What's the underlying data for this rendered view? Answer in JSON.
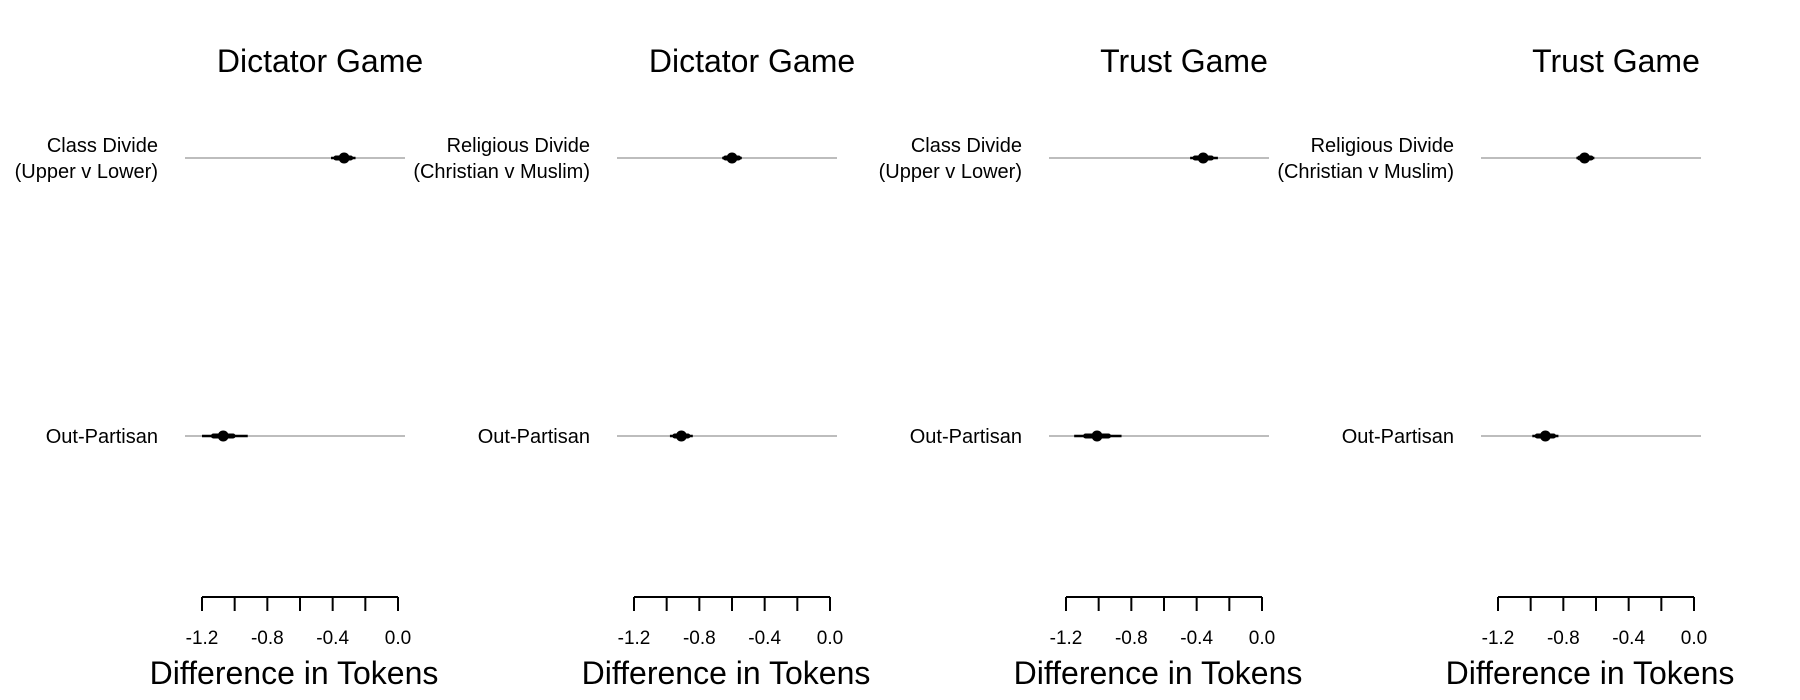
{
  "chart_data": [
    {
      "type": "coefficient_plot",
      "title": "Dictator Game",
      "xlabel": "Difference in Tokens",
      "xlim": [
        -1.2,
        0.0
      ],
      "xticks": [
        -1.2,
        -1.0,
        -0.8,
        -0.6,
        -0.4,
        -0.2,
        0.0
      ],
      "xtick_labels": [
        "-1.2",
        "-0.8",
        "-0.4",
        "0.0"
      ],
      "rows": [
        {
          "label_lines": [
            "Class Divide",
            "(Upper v Lower)"
          ],
          "estimate": -0.33,
          "ci_low": -0.41,
          "ci_high": -0.26,
          "ci_inner_low": -0.38,
          "ci_inner_high": -0.29
        },
        {
          "label_lines": [
            "Out-Partisan"
          ],
          "estimate": -1.07,
          "ci_low": -1.2,
          "ci_high": -0.92,
          "ci_inner_low": -1.13,
          "ci_inner_high": -1.01
        }
      ]
    },
    {
      "type": "coefficient_plot",
      "title": "Dictator Game",
      "xlabel": "Difference in Tokens",
      "xlim": [
        -1.2,
        0.0
      ],
      "xticks": [
        -1.2,
        -1.0,
        -0.8,
        -0.6,
        -0.4,
        -0.2,
        0.0
      ],
      "xtick_labels": [
        "-1.2",
        "-0.8",
        "-0.4",
        "0.0"
      ],
      "rows": [
        {
          "label_lines": [
            "Religious Divide",
            "(Christian v Muslim)"
          ],
          "estimate": -0.6,
          "ci_low": -0.66,
          "ci_high": -0.54,
          "ci_inner_low": -0.64,
          "ci_inner_high": -0.56
        },
        {
          "label_lines": [
            "Out-Partisan"
          ],
          "estimate": -0.91,
          "ci_low": -0.98,
          "ci_high": -0.84,
          "ci_inner_low": -0.95,
          "ci_inner_high": -0.87
        }
      ]
    },
    {
      "type": "coefficient_plot",
      "title": "Trust Game",
      "xlabel": "Difference in Tokens",
      "xlim": [
        -1.2,
        0.0
      ],
      "xticks": [
        -1.2,
        -1.0,
        -0.8,
        -0.6,
        -0.4,
        -0.2,
        0.0
      ],
      "xtick_labels": [
        "-1.2",
        "-0.8",
        "-0.4",
        "0.0"
      ],
      "rows": [
        {
          "label_lines": [
            "Class Divide",
            "(Upper v Lower)"
          ],
          "estimate": -0.36,
          "ci_low": -0.44,
          "ci_high": -0.27,
          "ci_inner_low": -0.41,
          "ci_inner_high": -0.31
        },
        {
          "label_lines": [
            "Out-Partisan"
          ],
          "estimate": -1.01,
          "ci_low": -1.15,
          "ci_high": -0.86,
          "ci_inner_low": -1.08,
          "ci_inner_high": -0.94
        }
      ]
    },
    {
      "type": "coefficient_plot",
      "title": "Trust Game",
      "xlabel": "Difference in Tokens",
      "xlim": [
        -1.2,
        0.0
      ],
      "xticks": [
        -1.2,
        -1.0,
        -0.8,
        -0.6,
        -0.4,
        -0.2,
        0.0
      ],
      "xtick_labels": [
        "-1.2",
        "-0.8",
        "-0.4",
        "0.0"
      ],
      "rows": [
        {
          "label_lines": [
            "Religious Divide",
            "(Christian v Muslim)"
          ],
          "estimate": -0.67,
          "ci_low": -0.72,
          "ci_high": -0.61,
          "ci_inner_low": -0.7,
          "ci_inner_high": -0.63
        },
        {
          "label_lines": [
            "Out-Partisan"
          ],
          "estimate": -0.91,
          "ci_low": -0.99,
          "ci_high": -0.83,
          "ci_inner_low": -0.96,
          "ci_inner_high": -0.86
        }
      ]
    }
  ],
  "colors": {
    "reference_line": "#bdbdbd",
    "estimate": "#000000",
    "axis": "#000000",
    "text": "#000000"
  }
}
